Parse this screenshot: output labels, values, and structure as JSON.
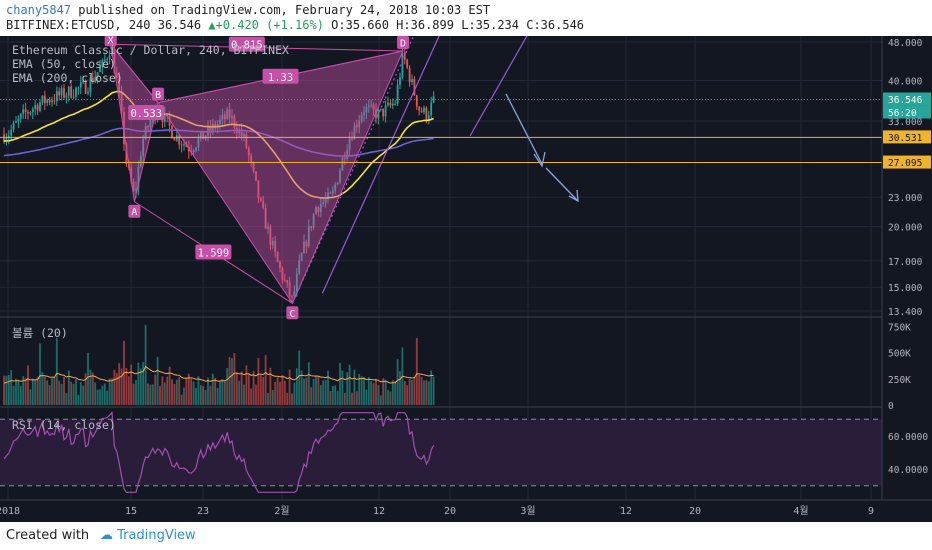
{
  "header": {
    "author": "chany5847",
    "published_text": "published on TradingView.com, February 24, 2018 10:03 EST",
    "symbol_line": "BITFINEX:ETCUSD, 240 36.546",
    "change_text": "+0.420 (+1.16%)",
    "ohlc_text": "O:35.660 H:36.899 L:35.234 C:36.546"
  },
  "legend": {
    "instrument": "Ethereum Classic / Dollar, 240, BITFINEX",
    "ema50": "EMA (50, close)",
    "ema200": "EMA (200, close)"
  },
  "colors": {
    "background": "#131722",
    "bull": "#26a69a",
    "bear": "#ef5350",
    "ema50": "#f5e23a",
    "ema200": "#6a63c9",
    "pattern": "#c84fa8",
    "rsi": "#a34fb0",
    "hline": "#f0b428",
    "arrow": "#8aa6d8",
    "price_tag": "#26a69a"
  },
  "chart_data": [
    {
      "type": "candlestick",
      "title": "",
      "y_ticks": [
        "48.000",
        "40.000",
        "33.000",
        "23.000",
        "20.000",
        "17.000",
        "15.000",
        "13.400"
      ],
      "y_scale": "log",
      "ylim": [
        13.4,
        48.0
      ],
      "x_ticks": [
        "2018",
        "15",
        "23",
        "2월",
        "12",
        "20",
        "3월",
        "12",
        "20",
        "4월",
        "9"
      ],
      "key_points": [
        {
          "label": "X",
          "date": "2018-01-14",
          "price": 47.5
        },
        {
          "label": "A",
          "date": "2018-01-17",
          "price": 22.5
        },
        {
          "label": "B",
          "date": "2018-01-20",
          "price": 36.0
        },
        {
          "label": "C",
          "date": "2018-02-06",
          "price": 13.9
        },
        {
          "label": "D",
          "date": "2018-02-20",
          "price": 46.0
        }
      ],
      "ratios": [
        "0.533",
        "0.815",
        "1.33",
        "1.599"
      ],
      "horizontal_lines": [
        30.531,
        27.095
      ],
      "price_tags": [
        {
          "text": "36.546",
          "kind": "last"
        },
        {
          "text": "56:20",
          "kind": "countdown"
        },
        {
          "text": "30.531",
          "kind": "level"
        },
        {
          "text": "27.095",
          "kind": "level"
        }
      ],
      "series": [
        {
          "name": "EMA (50, close)",
          "type": "line"
        },
        {
          "name": "EMA (200, close)",
          "type": "line"
        }
      ],
      "close_path": [
        [
          "2018-01-01",
          31
        ],
        [
          "2018-01-03",
          34
        ],
        [
          "2018-01-05",
          36
        ],
        [
          "2018-01-07",
          37
        ],
        [
          "2018-01-09",
          38
        ],
        [
          "2018-01-11",
          39
        ],
        [
          "2018-01-13",
          43
        ],
        [
          "2018-01-14",
          47
        ],
        [
          "2018-01-15",
          38
        ],
        [
          "2018-01-16",
          27
        ],
        [
          "2018-01-17",
          23
        ],
        [
          "2018-01-18",
          30
        ],
        [
          "2018-01-19",
          33
        ],
        [
          "2018-01-20",
          35
        ],
        [
          "2018-01-22",
          31
        ],
        [
          "2018-01-24",
          29
        ],
        [
          "2018-01-27",
          32
        ],
        [
          "2018-01-29",
          34
        ],
        [
          "2018-01-31",
          30
        ],
        [
          "2018-02-02",
          22
        ],
        [
          "2018-02-04",
          17
        ],
        [
          "2018-02-06",
          14
        ],
        [
          "2018-02-07",
          17
        ],
        [
          "2018-02-09",
          22
        ],
        [
          "2018-02-11",
          23
        ],
        [
          "2018-02-13",
          30
        ],
        [
          "2018-02-15",
          35
        ],
        [
          "2018-02-17",
          34
        ],
        [
          "2018-02-19",
          36
        ],
        [
          "2018-02-20",
          45
        ],
        [
          "2018-02-21",
          40
        ],
        [
          "2018-02-22",
          35
        ],
        [
          "2018-02-23",
          34
        ],
        [
          "2018-02-24",
          36.5
        ]
      ]
    },
    {
      "type": "bar",
      "title": "볼륨 (20)",
      "y_ticks": [
        "750K",
        "500K",
        "250K",
        "0"
      ],
      "ylim": [
        0,
        800000
      ]
    },
    {
      "type": "line",
      "title": "RSI (14, close)",
      "y_ticks": [
        "60.0000",
        "40.0000"
      ],
      "ylim": [
        25,
        75
      ],
      "bands": [
        70,
        30
      ]
    }
  ],
  "footer": {
    "created_with": "Created with",
    "brand": "TradingView"
  }
}
